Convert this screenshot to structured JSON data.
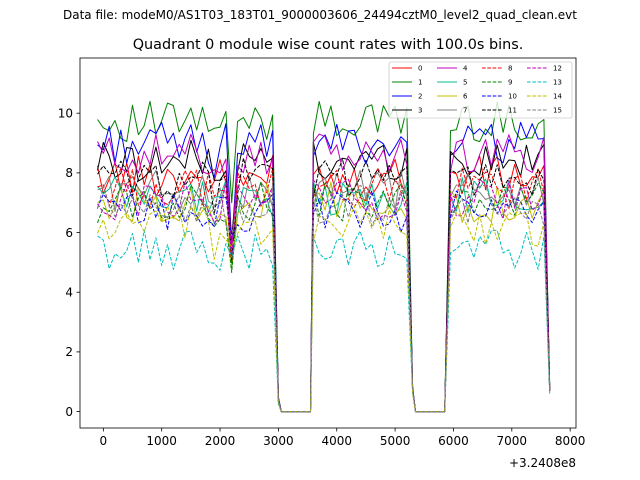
{
  "header": {
    "suptitle": "Data file: modeM0/AS1T03_183T01_9000003606_24494cztM0_level2_quad_clean.evt"
  },
  "chart_data": {
    "type": "line",
    "title": "Quadrant 0 module wise count rates with 100.0s bins.",
    "xlabel": "",
    "ylabel": "",
    "x_offset_label": "+3.2408e8",
    "xlim": [
      -400,
      8100
    ],
    "ylim": [
      -0.55,
      11.85
    ],
    "x_ticks": [
      0,
      1000,
      2000,
      3000,
      4000,
      5000,
      6000,
      7000,
      8000
    ],
    "x_tick_labels": [
      "0",
      "1000",
      "2000",
      "3000",
      "4000",
      "5000",
      "6000",
      "7000",
      "8000"
    ],
    "y_ticks": [
      0,
      2,
      4,
      6,
      8,
      10
    ],
    "y_tick_labels": [
      "0",
      "2",
      "4",
      "6",
      "8",
      "10"
    ],
    "grid": false,
    "legend_position": "upper-right",
    "legend_columns": 4,
    "segments": [
      {
        "start": -100,
        "step": 100,
        "count": 32
      },
      {
        "start": 3600,
        "step": 100,
        "count": 18
      },
      {
        "start": 5950,
        "step": 100,
        "count": 18
      }
    ],
    "series": [
      {
        "name": "0",
        "color": "#ff0000",
        "style": "solid",
        "base": 7.9
      },
      {
        "name": "1",
        "color": "#008000",
        "style": "solid",
        "base": 9.7
      },
      {
        "name": "2",
        "color": "#0000ff",
        "style": "solid",
        "base": 9.0
      },
      {
        "name": "3",
        "color": "#000000",
        "style": "solid",
        "base": 8.4
      },
      {
        "name": "4",
        "color": "#bf00bf",
        "style": "solid",
        "base": 8.6
      },
      {
        "name": "5",
        "color": "#00bf8f",
        "style": "solid",
        "base": 7.2
      },
      {
        "name": "6",
        "color": "#bfbf00",
        "style": "solid",
        "base": 7.0
      },
      {
        "name": "7",
        "color": "#808080",
        "style": "solid",
        "base": 7.4
      },
      {
        "name": "8",
        "color": "#ff0000",
        "style": "dashed",
        "base": 7.5
      },
      {
        "name": "9",
        "color": "#008000",
        "style": "dashed",
        "base": 7.0
      },
      {
        "name": "10",
        "color": "#0000ff",
        "style": "dashed",
        "base": 6.7
      },
      {
        "name": "11",
        "color": "#000000",
        "style": "dashed",
        "base": 7.8
      },
      {
        "name": "12",
        "color": "#bf00bf",
        "style": "dashed",
        "base": 7.1
      },
      {
        "name": "13",
        "color": "#00bfbf",
        "style": "dashed",
        "base": 5.4
      },
      {
        "name": "14",
        "color": "#bfbf00",
        "style": "dashed",
        "base": 6.2
      },
      {
        "name": "15",
        "color": "#808080",
        "style": "dashed",
        "base": 6.9
      }
    ]
  }
}
